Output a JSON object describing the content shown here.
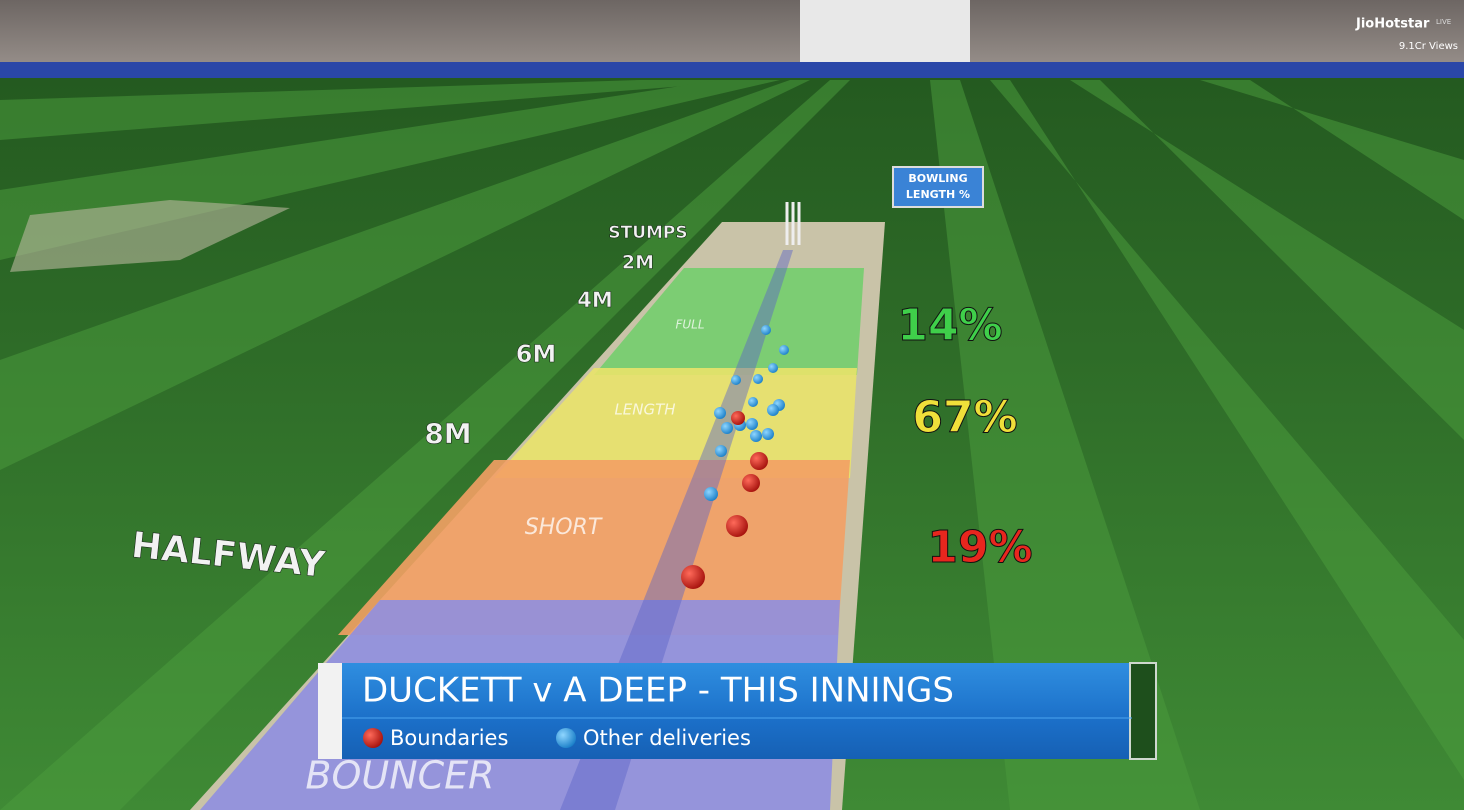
{
  "broadcast": {
    "channel": "JioHotstar",
    "live": "LIVE",
    "views": "9.1Cr Views"
  },
  "sign": "BOWLING LENGTH %",
  "distances": [
    "STUMPS",
    "2M",
    "4M",
    "6M",
    "8M",
    "HALFWAY"
  ],
  "zones": [
    {
      "label": "FULL",
      "percent": "14%"
    },
    {
      "label": "LENGTH",
      "percent": "67%"
    },
    {
      "label": "SHORT",
      "percent": "19%"
    },
    {
      "label": "BOUNCER"
    }
  ],
  "banner": {
    "title": "DUCKETT v A DEEP - THIS INNINGS",
    "legend": [
      "Boundaries",
      "Other deliveries"
    ]
  }
}
